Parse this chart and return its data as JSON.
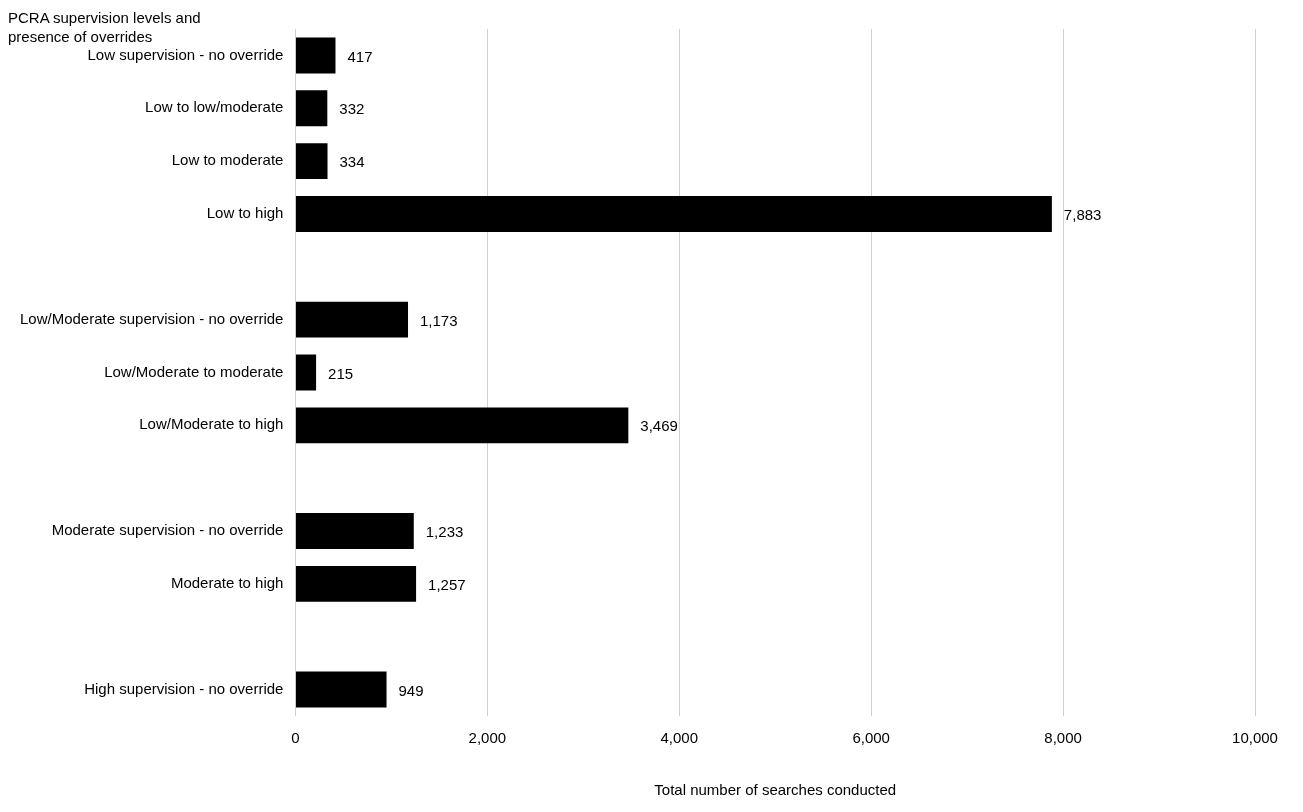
{
  "chart_data": {
    "type": "bar",
    "orientation": "horizontal",
    "ylabel": "PCRA supervision levels and presence of overrides",
    "xlabel": "Total number of searches conducted",
    "categories": [
      "Low supervision - no override",
      "Low to low/moderate",
      "Low to moderate",
      "Low to high",
      null,
      "Low/Moderate supervision - no override",
      "Low/Moderate to moderate",
      "Low/Moderate to high",
      null,
      "Moderate supervision - no override",
      "Moderate to high",
      null,
      "High supervision - no override"
    ],
    "values": [
      417,
      332,
      334,
      7883,
      null,
      1173,
      215,
      3469,
      null,
      1233,
      1257,
      null,
      949
    ],
    "value_labels": [
      "417",
      "332",
      "334",
      "7,883",
      null,
      "1,173",
      "215",
      "3,469",
      null,
      "1,233",
      "1,257",
      null,
      "949"
    ],
    "color": "#000000",
    "xlim": [
      0,
      10000
    ],
    "xticks": [
      0,
      {
        "value": 2000,
        "label": "2,000"
      },
      {
        "value": 4000,
        "label": "4,000"
      },
      {
        "value": 6000,
        "label": "6,000"
      },
      {
        "value": 8000,
        "label": "8,000"
      },
      {
        "value": 10000,
        "label": "10,000"
      }
    ],
    "grid": "x",
    "legend": false
  }
}
